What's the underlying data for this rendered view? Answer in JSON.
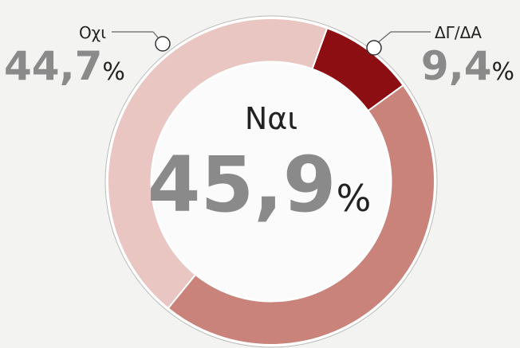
{
  "chart_data": {
    "type": "donut",
    "categories": [
      "ΔΓ/ΔΑ",
      "Ναι",
      "Οχι"
    ],
    "values": [
      9.4,
      45.9,
      44.7
    ],
    "value_labels": [
      "9,4",
      "45,9",
      "44,7"
    ],
    "unit": "%",
    "colors": [
      "#8c0d12",
      "#c9837b",
      "#e9c6c1"
    ]
  }
}
